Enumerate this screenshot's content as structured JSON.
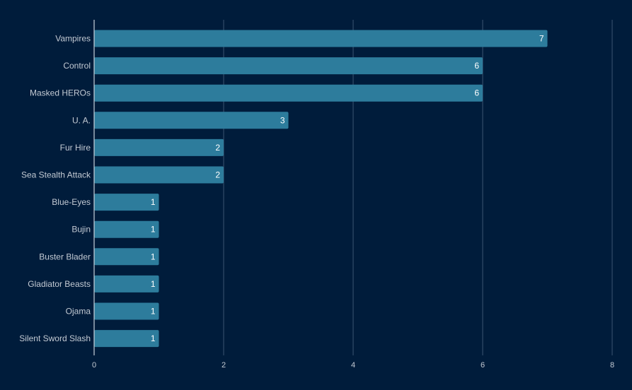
{
  "colors": {
    "background": "#001c3b",
    "bar": "#2d7c9c",
    "gridline": "#3c5470",
    "axis": "#c9d1da",
    "text": "#c3cad3",
    "value_text": "#ffffff"
  },
  "chart_data": {
    "type": "bar",
    "orientation": "horizontal",
    "categories": [
      "Vampires",
      "Control",
      "Masked HEROs",
      "U. A.",
      "Fur Hire",
      "Sea Stealth Attack",
      "Blue-Eyes",
      "Bujin",
      "Buster Blader",
      "Gladiator Beasts",
      "Ojama",
      "Silent Sword Slash"
    ],
    "values": [
      7,
      6,
      6,
      3,
      2,
      2,
      1,
      1,
      1,
      1,
      1,
      1
    ],
    "data_labels": [
      "7",
      "6",
      "6",
      "3",
      "2",
      "2",
      "1",
      "1",
      "1",
      "1",
      "1",
      "1"
    ],
    "title": "",
    "xlabel": "",
    "ylabel": "",
    "xlim": [
      0,
      8
    ],
    "x_ticks": [
      0,
      2,
      4,
      6,
      8
    ],
    "x_tick_labels": [
      "0",
      "2",
      "4",
      "6",
      "8"
    ],
    "grid": true
  }
}
